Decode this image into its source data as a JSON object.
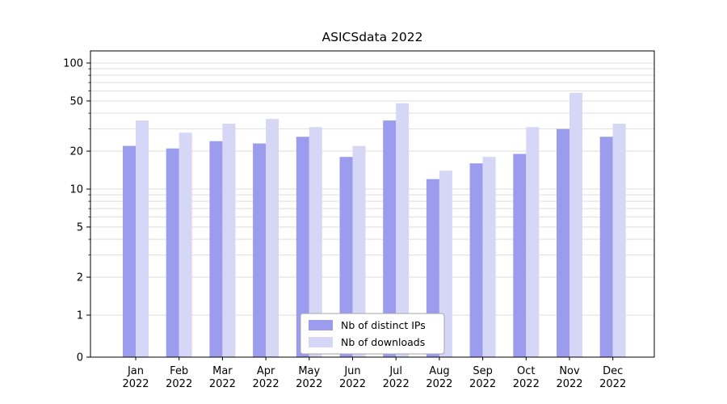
{
  "chart_data": {
    "type": "bar",
    "title": "ASICSdata 2022",
    "yscale": "symlog",
    "ylim": [
      0,
      125
    ],
    "y_ticks": [
      0,
      1,
      2,
      5,
      10,
      20,
      50,
      100
    ],
    "grid": true,
    "x_categories": [
      "Jan",
      "Feb",
      "Mar",
      "Apr",
      "May",
      "Jun",
      "Jul",
      "Aug",
      "Sep",
      "Oct",
      "Nov",
      "Dec"
    ],
    "x_tick_line2": "2022",
    "legend_position": "lower center",
    "series": [
      {
        "name": "Nb of distinct IPs",
        "color": "#9c9cee",
        "values": [
          22,
          21,
          24,
          23,
          26,
          18,
          35,
          12,
          16,
          19,
          30,
          26
        ]
      },
      {
        "name": "Nb of downloads",
        "color": "#d6d6f6",
        "values": [
          35,
          28,
          33,
          36,
          31,
          22,
          48,
          14,
          18,
          31,
          58,
          33
        ]
      }
    ]
  },
  "colors": {
    "background": "#ffffff",
    "axis": "#000000",
    "grid": "#dedede",
    "legend_border": "#a6a6a6",
    "legend_bg": "#ffffff"
  }
}
